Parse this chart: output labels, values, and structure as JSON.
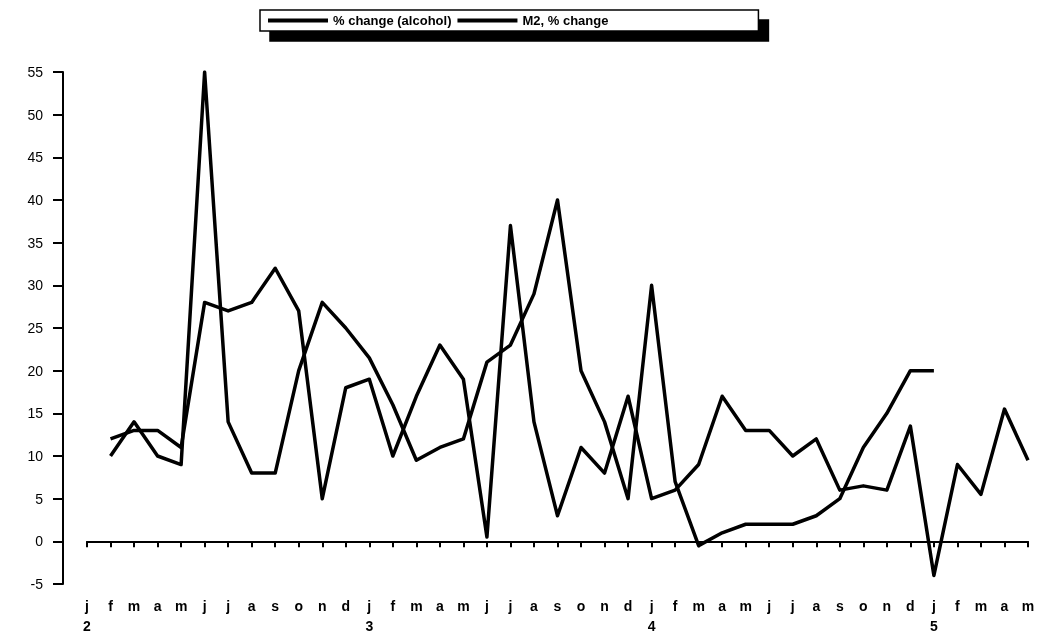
{
  "chart_data": {
    "type": "line",
    "categories": [
      "j\n2",
      "f",
      "m",
      "a",
      "m",
      "j",
      "j",
      "a",
      "s",
      "o",
      "n",
      "d",
      "j\n3",
      "f",
      "m",
      "a",
      "m",
      "j",
      "j",
      "a",
      "s",
      "o",
      "n",
      "d",
      "j\n4",
      "f",
      "m",
      "a",
      "m",
      "j",
      "j",
      "a",
      "s",
      "o",
      "n",
      "d",
      "j\n5",
      "f",
      "m",
      "a",
      "m"
    ],
    "series": [
      {
        "name": "% change (alcohol)",
        "color": "#000000",
        "values": [
          null,
          12,
          13,
          13,
          11,
          28,
          27,
          28,
          32,
          27,
          5,
          18,
          19,
          10,
          17,
          23,
          19,
          0.5,
          37,
          14,
          3,
          11,
          8,
          17,
          5,
          6,
          9,
          17,
          13,
          13,
          10,
          12,
          6,
          6.5,
          6,
          13.5,
          -4,
          9,
          5.5,
          15.5,
          9.5
        ]
      },
      {
        "name": "M2, % change",
        "color": "#000000",
        "values": [
          null,
          10,
          14,
          10,
          9,
          55,
          14,
          8,
          8,
          20,
          28,
          25,
          21.5,
          16,
          9.5,
          11,
          12,
          21,
          23,
          29,
          40,
          20,
          14,
          5,
          30,
          7,
          -0.5,
          1,
          2,
          2,
          2,
          3,
          5,
          11,
          15,
          20,
          20,
          null,
          null,
          null,
          null
        ]
      }
    ],
    "ylim": [
      -5,
      55
    ],
    "yticks": [
      -5,
      0,
      5,
      10,
      15,
      20,
      25,
      30,
      35,
      40,
      45,
      50,
      55
    ],
    "legend": "top",
    "marker": "none",
    "line_style": "solid"
  }
}
